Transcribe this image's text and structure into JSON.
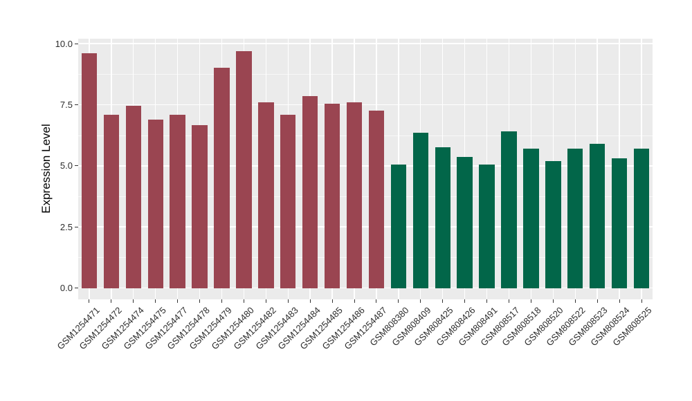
{
  "chart_data": {
    "type": "bar",
    "title": "",
    "xlabel": "",
    "ylabel": "Expression Level",
    "ylim": [
      0,
      10
    ],
    "grid": true,
    "legend_position": "none",
    "y_ticks": [
      {
        "label": "0.0",
        "value": 0
      },
      {
        "label": "2.5",
        "value": 2.5
      },
      {
        "label": "5.0",
        "value": 5
      },
      {
        "label": "7.5",
        "value": 7.5
      },
      {
        "label": "10.0",
        "value": 10
      }
    ],
    "y_minor_ticks": [
      1.25,
      3.75,
      6.25,
      8.75
    ],
    "colors": {
      "group_a": "#9A4551",
      "group_b": "#026649",
      "panel_background": "#EBEBEB",
      "gridline": "#FFFFFF"
    },
    "bars": [
      {
        "label": "GSM1254471",
        "value": 9.6,
        "group": "a"
      },
      {
        "label": "GSM1254472",
        "value": 7.1,
        "group": "a"
      },
      {
        "label": "GSM1254474",
        "value": 7.45,
        "group": "a"
      },
      {
        "label": "GSM1254475",
        "value": 6.9,
        "group": "a"
      },
      {
        "label": "GSM1254477",
        "value": 7.1,
        "group": "a"
      },
      {
        "label": "GSM1254478",
        "value": 6.65,
        "group": "a"
      },
      {
        "label": "GSM1254479",
        "value": 9.0,
        "group": "a"
      },
      {
        "label": "GSM1254480",
        "value": 9.7,
        "group": "a"
      },
      {
        "label": "GSM1254482",
        "value": 7.6,
        "group": "a"
      },
      {
        "label": "GSM1254483",
        "value": 7.1,
        "group": "a"
      },
      {
        "label": "GSM1254484",
        "value": 7.85,
        "group": "a"
      },
      {
        "label": "GSM1254485",
        "value": 7.55,
        "group": "a"
      },
      {
        "label": "GSM1254486",
        "value": 7.6,
        "group": "a"
      },
      {
        "label": "GSM1254487",
        "value": 7.25,
        "group": "a"
      },
      {
        "label": "GSM808380",
        "value": 5.05,
        "group": "b"
      },
      {
        "label": "GSM808409",
        "value": 6.35,
        "group": "b"
      },
      {
        "label": "GSM808425",
        "value": 5.75,
        "group": "b"
      },
      {
        "label": "GSM808426",
        "value": 5.35,
        "group": "b"
      },
      {
        "label": "GSM808491",
        "value": 5.05,
        "group": "b"
      },
      {
        "label": "GSM808517",
        "value": 6.4,
        "group": "b"
      },
      {
        "label": "GSM808518",
        "value": 5.7,
        "group": "b"
      },
      {
        "label": "GSM808520",
        "value": 5.2,
        "group": "b"
      },
      {
        "label": "GSM808522",
        "value": 5.7,
        "group": "b"
      },
      {
        "label": "GSM808523",
        "value": 5.9,
        "group": "b"
      },
      {
        "label": "GSM808524",
        "value": 5.3,
        "group": "b"
      },
      {
        "label": "GSM808525",
        "value": 5.7,
        "group": "b"
      }
    ]
  }
}
